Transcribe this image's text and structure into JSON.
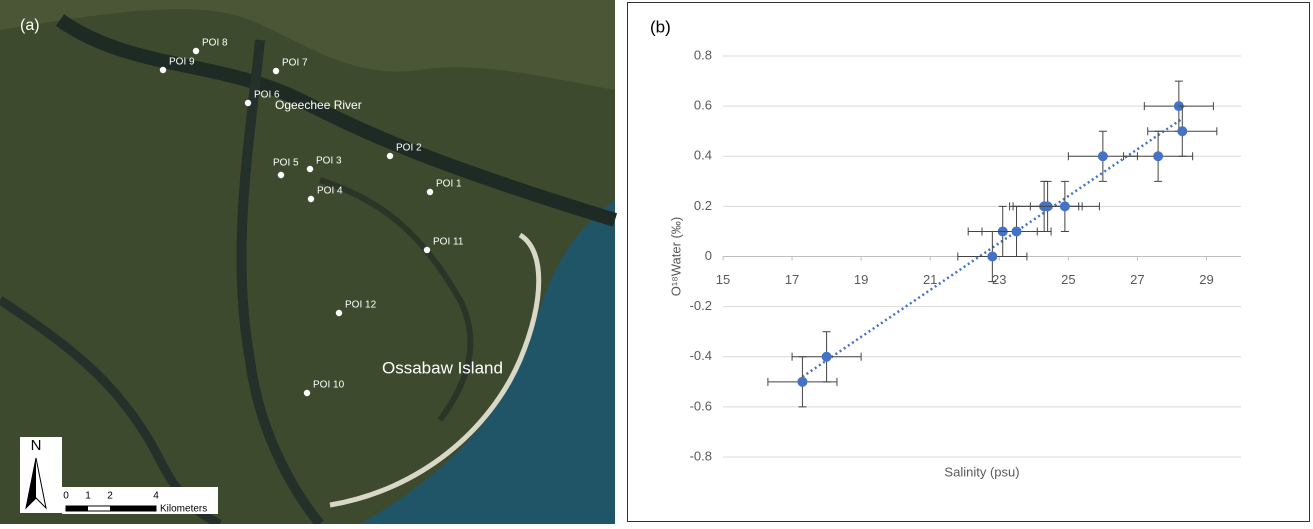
{
  "map": {
    "panel_label": "(a)",
    "river_label": "Ogeechee River",
    "island_label": "Ossabaw Island",
    "north": "N",
    "scale_ticks": [
      "0",
      "1",
      "2",
      "4"
    ],
    "scale_unit": "Kilometers",
    "points": [
      "POI 1",
      "POI 2",
      "POI 3",
      "POI 4",
      "POI 5",
      "POI 6",
      "POI 7",
      "POI 8",
      "POI 9",
      "POI 10",
      "POI 11",
      "POI 12"
    ]
  },
  "chart_data": {
    "type": "scatter",
    "panel_label": "(b)",
    "x_label": "Salinity (psu)",
    "y_label": "O¹⁸Water (‰)",
    "x": [
      17.3,
      18.0,
      22.8,
      23.1,
      23.5,
      24.3,
      24.4,
      24.9,
      26.0,
      27.6,
      28.2,
      28.3
    ],
    "y": [
      -0.5,
      -0.4,
      0,
      0.1,
      0.1,
      0.2,
      0.2,
      0.2,
      0.4,
      0.4,
      0.6,
      0.5
    ],
    "x_err": [
      1.0,
      1.0,
      1.0,
      1.0,
      1.0,
      1.0,
      1.0,
      1.0,
      1.0,
      1.0,
      1.0,
      1.0
    ],
    "y_err": [
      0.1,
      0.1,
      0.1,
      0.1,
      0.1,
      0.1,
      0.1,
      0.1,
      0.1,
      0.1,
      0.1,
      0.1
    ],
    "color": "#4472c4",
    "trendline": {
      "x": [
        17.3,
        28.3
      ],
      "y": [
        -0.48,
        0.55
      ]
    },
    "xlim": [
      15,
      30
    ],
    "ylim": [
      -0.8,
      0.8
    ],
    "xticks": [
      15,
      17,
      19,
      21,
      23,
      25,
      27,
      29
    ],
    "yticks": [
      -0.8,
      -0.6,
      -0.4,
      -0.2,
      0,
      0.2,
      0.4,
      0.6,
      0.8
    ],
    "grid": true
  }
}
